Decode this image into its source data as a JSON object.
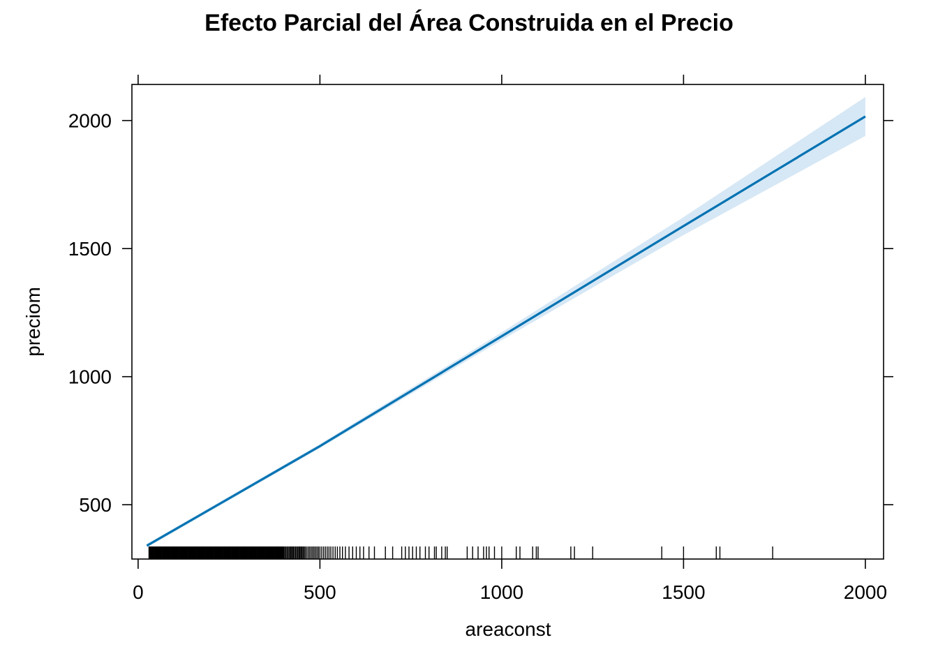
{
  "chart_data": {
    "type": "line",
    "title": "Efecto Parcial del Área Construida en el Precio",
    "xlabel": "areaconst",
    "ylabel": "preciom",
    "xlim": [
      -17,
      2050
    ],
    "ylim": [
      288,
      2141
    ],
    "x_ticks": [
      0,
      500,
      1000,
      1500,
      2000
    ],
    "y_ticks": [
      500,
      1000,
      1500,
      2000
    ],
    "x_tick_labels": [
      "0",
      "500",
      "1000",
      "1500",
      "2000"
    ],
    "y_tick_labels": [
      "500",
      "1000",
      "1500",
      "2000"
    ],
    "grid": false,
    "line_color": "#0072B2",
    "band_color": "#D6E7F5",
    "series": [
      {
        "x": [
          24,
          500,
          1000,
          1500,
          2000
        ],
        "y": [
          340,
          729,
          1158,
          1588,
          2016
        ]
      }
    ],
    "confidence_band": {
      "x": [
        24,
        500,
        1000,
        1500,
        2000
      ],
      "lower": [
        333,
        721,
        1143,
        1553,
        1940
      ],
      "upper": [
        347,
        737,
        1173,
        1623,
        2092
      ]
    },
    "rug": [
      30,
      32,
      34,
      36,
      38,
      40,
      42,
      44,
      46,
      48,
      50,
      52,
      54,
      56,
      58,
      60,
      62,
      64,
      66,
      68,
      70,
      72,
      74,
      76,
      78,
      80,
      82,
      84,
      86,
      88,
      90,
      92,
      94,
      96,
      98,
      100,
      102,
      104,
      106,
      108,
      110,
      112,
      114,
      116,
      118,
      120,
      122,
      124,
      126,
      128,
      130,
      132,
      134,
      136,
      138,
      140,
      142,
      144,
      146,
      148,
      150,
      152,
      154,
      156,
      158,
      160,
      162,
      164,
      166,
      168,
      170,
      172,
      174,
      176,
      178,
      180,
      182,
      184,
      186,
      188,
      190,
      192,
      194,
      196,
      198,
      200,
      202,
      204,
      206,
      208,
      210,
      212,
      214,
      216,
      218,
      220,
      222,
      224,
      226,
      228,
      230,
      232,
      234,
      236,
      238,
      240,
      242,
      244,
      246,
      248,
      250,
      252,
      254,
      256,
      258,
      260,
      262,
      264,
      266,
      268,
      270,
      272,
      274,
      276,
      278,
      280,
      282,
      284,
      286,
      288,
      290,
      292,
      294,
      296,
      298,
      300,
      302,
      304,
      306,
      308,
      310,
      312,
      314,
      316,
      318,
      320,
      322,
      324,
      326,
      328,
      330,
      332,
      334,
      336,
      338,
      340,
      342,
      344,
      346,
      348,
      350,
      352,
      354,
      356,
      358,
      360,
      362,
      364,
      366,
      368,
      370,
      372,
      374,
      376,
      378,
      380,
      382,
      384,
      386,
      388,
      390,
      392,
      394,
      396,
      398,
      400,
      403,
      406,
      409,
      412,
      415,
      418,
      421,
      424,
      427,
      430,
      433,
      436,
      439,
      442,
      445,
      448,
      451,
      454,
      457,
      460,
      464,
      468,
      472,
      476,
      480,
      484,
      488,
      492,
      496,
      500,
      505,
      510,
      515,
      520,
      525,
      530,
      536,
      542,
      548,
      555,
      562,
      570,
      580,
      590,
      600,
      610,
      620,
      635,
      650,
      680,
      700,
      725,
      735,
      745,
      755,
      765,
      775,
      790,
      800,
      815,
      820,
      835,
      845,
      850,
      905,
      920,
      935,
      950,
      958,
      965,
      980,
      1000,
      1040,
      1050,
      1085,
      1095,
      1100,
      1190,
      1200,
      1250,
      1440,
      1500,
      1590,
      1600,
      1745
    ]
  }
}
